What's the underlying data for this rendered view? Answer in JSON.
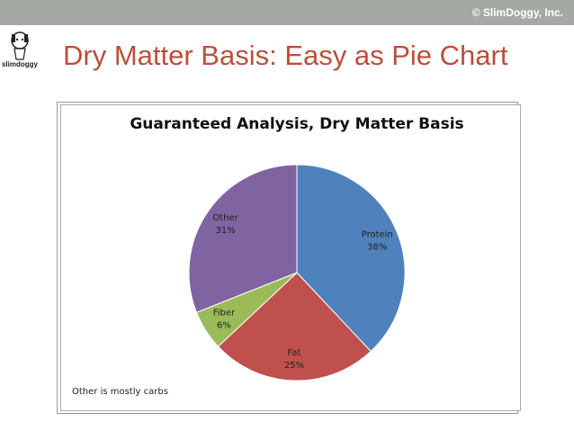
{
  "slide": {
    "copyright": "© SlimDoggy, Inc.",
    "title": "Dry Matter Basis: Easy as Pie Chart",
    "logo": "slimdoggy"
  },
  "chart_data": {
    "type": "pie",
    "title": "Guaranteed Analysis, Dry Matter Basis",
    "categories": [
      "Protein",
      "Fat",
      "Fiber",
      "Other"
    ],
    "values": [
      38,
      25,
      6,
      31
    ],
    "value_labels": [
      "38%",
      "25%",
      "6%",
      "31%"
    ],
    "colors": [
      "#4f81bd",
      "#c0504d",
      "#9bbb59",
      "#8064a2"
    ],
    "annotation": "Other is mostly carbs"
  }
}
